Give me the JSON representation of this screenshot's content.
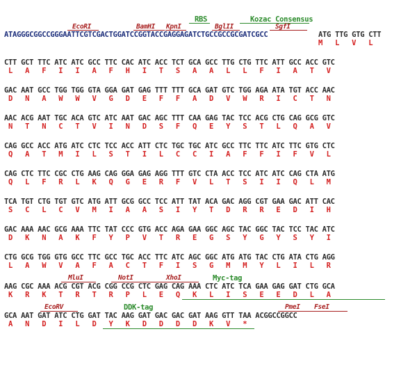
{
  "header": {
    "rbs": "RBS",
    "kozac": "Kozac Consensus",
    "ecori": "EcoRI",
    "bamhi": "BamHI",
    "kpni": "KpnI",
    "bglii": "BglII",
    "sgfi": "SgfI",
    "seq": "ATAGGGCGGCCGGGAATTCGTCGACTGGATCCGGTACCGAGGAGATCTGCCGCCGCGATCGCC",
    "codons": "ATG TTG GTG CTT",
    "aa": "M   L   V   L"
  },
  "rows": [
    {
      "dna": "CTT GCT TTC ATC ATC GCC TTC CAC ATC ACC TCT GCA GCC TTG CTG TTC ATT GCC ACC GTC",
      "aa": " L   A   F   I   I   A   F   H   I   T   S   A   A   L   L   F   I   A   T   V"
    },
    {
      "dna": "GAC AAT GCC TGG TGG GTA GGA GAT GAG TTT TTT GCA GAT GTC TGG AGA ATA TGT ACC AAC",
      "aa": " D   N   A   W   W   V   G   D   E   F   F   A   D   V   W   R   I   C   T   N"
    },
    {
      "dna": "AAC ACG AAT TGC ACA GTC ATC AAT GAC AGC TTT CAA GAG TAC TCC ACG CTG CAG GCG GTC",
      "aa": " N   T   N   C   T   V   I   N   D   S   F   Q   E   Y   S   T   L   Q   A   V"
    },
    {
      "dna": "CAG GCC ACC ATG ATC CTC TCC ACC ATT CTC TGC TGC ATC GCC TTC TTC ATC TTC GTG CTC",
      "aa": " Q   A   T   M   I   L   S   T   I   L   C   C   I   A   F   F   I   F   V   L"
    },
    {
      "dna": "CAG CTC TTC CGC CTG AAG CAG GGA GAG AGG TTT GTC CTA ACC TCC ATC ATC CAG CTA ATG",
      "aa": " Q   L   F   R   L   K   Q   G   E   R   F   V   L   T   S   I   I   Q   L   M"
    },
    {
      "dna": "TCA TGT CTG TGT GTC ATG ATT GCG GCC TCC ATT TAT ACA GAC AGG CGT GAA GAC ATT CAC",
      "aa": " S   C   L   C   V   M   I   A   A   S   I   Y   T   D   R   R   E   D   I   H"
    },
    {
      "dna": "GAC AAA AAC GCG AAA TTC TAT CCC GTG ACC AGA GAA GGC AGC TAC GGC TAC TCC TAC ATC",
      "aa": " D   K   N   A   K   F   Y   P   V   T   R   E   G   S   Y   G   Y   S   Y   I"
    },
    {
      "dna": "CTG GCG TGG GTG GCC TTC GCC TGC ACC TTC ATC AGC GGC ATG ATG TAC CTG ATA CTG AGG",
      "aa": " L   A   W   V   A   F   A   C   T   F   I   S   G   M   M   Y   L   I   L   R"
    }
  ],
  "row10": {
    "mlui": "MluI",
    "noti": "NotI",
    "xhoi": "XhoI",
    "myc": "Myc-tag",
    "dna": "AAG CGC AAA ACG CGT ACG CGG CCG CTC GAG CAG AAA CTC ATC TCA GAA GAG GAT CTG GCA",
    "aa": " K   R   K   T   R   T   R   P   L   E   Q   K   L   I   S   E   E   D   L   A"
  },
  "row11": {
    "ecorv": "EcoRV",
    "ddk": "DDK-tag",
    "pmei": "PmeI",
    "fsei": "FseI",
    "dna": "GCA AAT GAT ATC CTG GAT TAC AAG GAT GAC GAC GAT AAG GTT TAA ACGGCCGGCC",
    "aa": " A   N   D   I   L   D   Y   K   D   D   D   D   K   V   *"
  }
}
